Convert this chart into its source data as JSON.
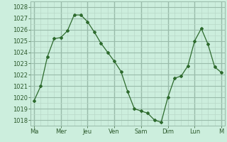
{
  "y_values": [
    1019.7,
    1021.0,
    1023.6,
    1025.2,
    1025.3,
    1025.9,
    1027.3,
    1027.3,
    1026.7,
    1025.8,
    1024.8,
    1024.0,
    1023.2,
    1022.3,
    1020.5,
    1019.0,
    1018.8,
    1018.6,
    1018.0,
    1017.8,
    1020.0,
    1021.7,
    1021.9,
    1022.8,
    1025.0,
    1026.1,
    1024.7,
    1022.7,
    1022.2
  ],
  "tick_positions": [
    0,
    4,
    8,
    12,
    16,
    20,
    24,
    28
  ],
  "tick_labels": [
    "Ma",
    "Mer",
    "Jeu",
    "Ven",
    "Sam",
    "Dim",
    "Lun",
    "M"
  ],
  "ylim": [
    1017.5,
    1028.5
  ],
  "yticks": [
    1018,
    1019,
    1020,
    1021,
    1022,
    1023,
    1024,
    1025,
    1026,
    1027,
    1028
  ],
  "line_color": "#2d6a2d",
  "marker_color": "#2d6a2d",
  "bg_color": "#cceedd",
  "grid_major_color": "#99bbaa",
  "grid_minor_color": "#b8d8c8"
}
